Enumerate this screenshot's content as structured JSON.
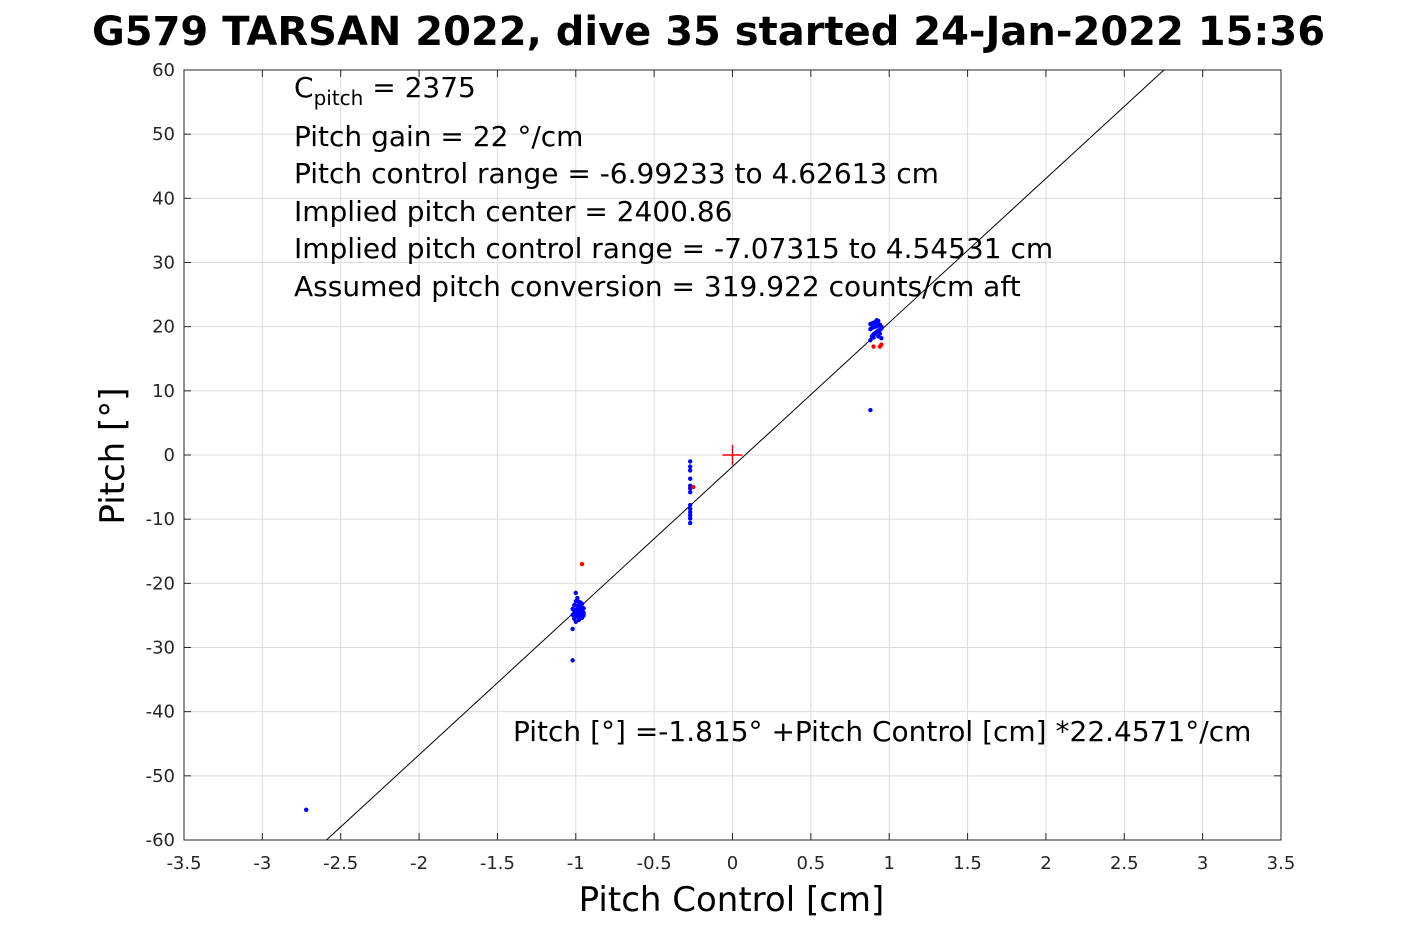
{
  "title": "G579 TARSAN 2022, dive 35 started 24-Jan-2022 15:36",
  "annotations": {
    "cpitch_symbol": "C",
    "cpitch_subscript": "pitch",
    "cpitch_value": " = 2375",
    "line2": "Pitch gain = 22 °/cm",
    "line3": "Pitch control range = -6.99233 to 4.62613 cm",
    "line4": "Implied pitch center = 2400.86",
    "line5": "Implied pitch control range = -7.07315 to 4.54531 cm",
    "line6": "Assumed pitch conversion = 319.922 counts/cm aft",
    "fit_equation": "Pitch [°] =-1.815° +Pitch Control [cm] *22.4571°/cm"
  },
  "chart_data": {
    "type": "scatter",
    "title": "G579 TARSAN 2022, dive 35 started 24-Jan-2022 15:36",
    "xlabel": "Pitch Control [cm]",
    "ylabel": "Pitch [°]",
    "xlim": [
      -3.5,
      3.5
    ],
    "ylim": [
      -60,
      60
    ],
    "xticks": [
      -3.5,
      -3,
      -2.5,
      -2,
      -1.5,
      -1,
      -0.5,
      0,
      0.5,
      1,
      1.5,
      2,
      2.5,
      3,
      3.5
    ],
    "xtick_labels": [
      "-3.5",
      "-3",
      "-2.5",
      "-2",
      "-1.5",
      "-1",
      "-0.5",
      "0",
      "0.5",
      "1",
      "1.5",
      "2",
      "2.5",
      "3",
      "3.5"
    ],
    "yticks": [
      60,
      50,
      40,
      30,
      20,
      10,
      0,
      -10,
      -20,
      -30,
      -40,
      -50,
      -60
    ],
    "ytick_labels": [
      "60",
      "50",
      "40",
      "30",
      "20",
      "10",
      "0",
      "-10",
      "-20",
      "-30",
      "-40",
      "-50",
      "-60"
    ],
    "grid": true,
    "fit_line": {
      "intercept": -1.815,
      "slope": 22.4571
    },
    "center_marker": {
      "x": 0,
      "y": 0,
      "color": "#ff0000"
    },
    "colors": {
      "good": "#0000ff",
      "bad": "#ff0000",
      "fit": "#000000",
      "grid": "#dcdcdc"
    },
    "series": [
      {
        "color": "#0000ff",
        "points": [
          [
            -2.72,
            -55.3
          ],
          [
            -1.02,
            -32.0
          ],
          [
            -1.02,
            -27.1
          ],
          [
            -1.0,
            -21.5
          ],
          [
            -0.99,
            -22.3
          ],
          [
            -1.0,
            -22.8
          ],
          [
            -0.98,
            -22.9
          ],
          [
            -0.97,
            -23.0
          ],
          [
            -0.96,
            -23.2
          ],
          [
            -1.01,
            -23.4
          ],
          [
            -0.99,
            -23.5
          ],
          [
            -0.98,
            -23.6
          ],
          [
            -0.97,
            -23.7
          ],
          [
            -0.96,
            -23.8
          ],
          [
            -0.95,
            -23.9
          ],
          [
            -1.02,
            -24.0
          ],
          [
            -1.0,
            -24.1
          ],
          [
            -0.99,
            -24.2
          ],
          [
            -0.98,
            -24.3
          ],
          [
            -0.97,
            -24.4
          ],
          [
            -0.96,
            -24.5
          ],
          [
            -1.01,
            -24.6
          ],
          [
            -0.99,
            -24.7
          ],
          [
            -0.98,
            -24.8
          ],
          [
            -0.97,
            -24.9
          ],
          [
            -0.95,
            -25.0
          ],
          [
            -1.0,
            -25.1
          ],
          [
            -0.99,
            -25.2
          ],
          [
            -0.97,
            -25.3
          ],
          [
            -0.96,
            -25.4
          ],
          [
            -1.01,
            -25.5
          ],
          [
            -0.98,
            -25.7
          ],
          [
            -1.0,
            -26.0
          ],
          [
            -0.96,
            -24.2
          ],
          [
            -0.95,
            -24.6
          ],
          [
            -1.02,
            -24.9
          ],
          [
            -0.27,
            -1.0
          ],
          [
            -0.27,
            -1.8
          ],
          [
            -0.27,
            -2.4
          ],
          [
            -0.27,
            -3.7
          ],
          [
            -0.27,
            -4.8
          ],
          [
            -0.27,
            -5.2
          ],
          [
            -0.27,
            -5.8
          ],
          [
            -0.27,
            -7.8
          ],
          [
            -0.27,
            -8.4
          ],
          [
            -0.27,
            -8.9
          ],
          [
            -0.27,
            -9.4
          ],
          [
            -0.27,
            -9.9
          ],
          [
            -0.27,
            -10.6
          ],
          [
            0.88,
            7.0
          ],
          [
            0.88,
            17.9
          ],
          [
            0.89,
            18.5
          ],
          [
            0.9,
            18.8
          ],
          [
            0.91,
            19.0
          ],
          [
            0.92,
            19.2
          ],
          [
            0.93,
            19.4
          ],
          [
            0.94,
            19.5
          ],
          [
            0.88,
            19.6
          ],
          [
            0.89,
            19.8
          ],
          [
            0.9,
            19.9
          ],
          [
            0.91,
            20.0
          ],
          [
            0.92,
            20.1
          ],
          [
            0.93,
            20.2
          ],
          [
            0.94,
            20.3
          ],
          [
            0.88,
            20.4
          ],
          [
            0.89,
            20.5
          ],
          [
            0.9,
            20.6
          ],
          [
            0.91,
            20.7
          ],
          [
            0.92,
            20.8
          ],
          [
            0.93,
            20.9
          ],
          [
            0.95,
            19.7
          ],
          [
            0.95,
            20.0
          ],
          [
            0.94,
            18.9
          ],
          [
            0.9,
            18.3
          ],
          [
            0.93,
            18.5
          ],
          [
            0.95,
            18.2
          ],
          [
            0.92,
            21.0
          ]
        ]
      },
      {
        "color": "#ff0000",
        "points": [
          [
            -0.96,
            -17.0
          ],
          [
            -0.25,
            -5.0
          ],
          [
            0.9,
            16.9
          ],
          [
            0.94,
            16.9
          ],
          [
            0.95,
            17.2
          ]
        ]
      }
    ]
  }
}
